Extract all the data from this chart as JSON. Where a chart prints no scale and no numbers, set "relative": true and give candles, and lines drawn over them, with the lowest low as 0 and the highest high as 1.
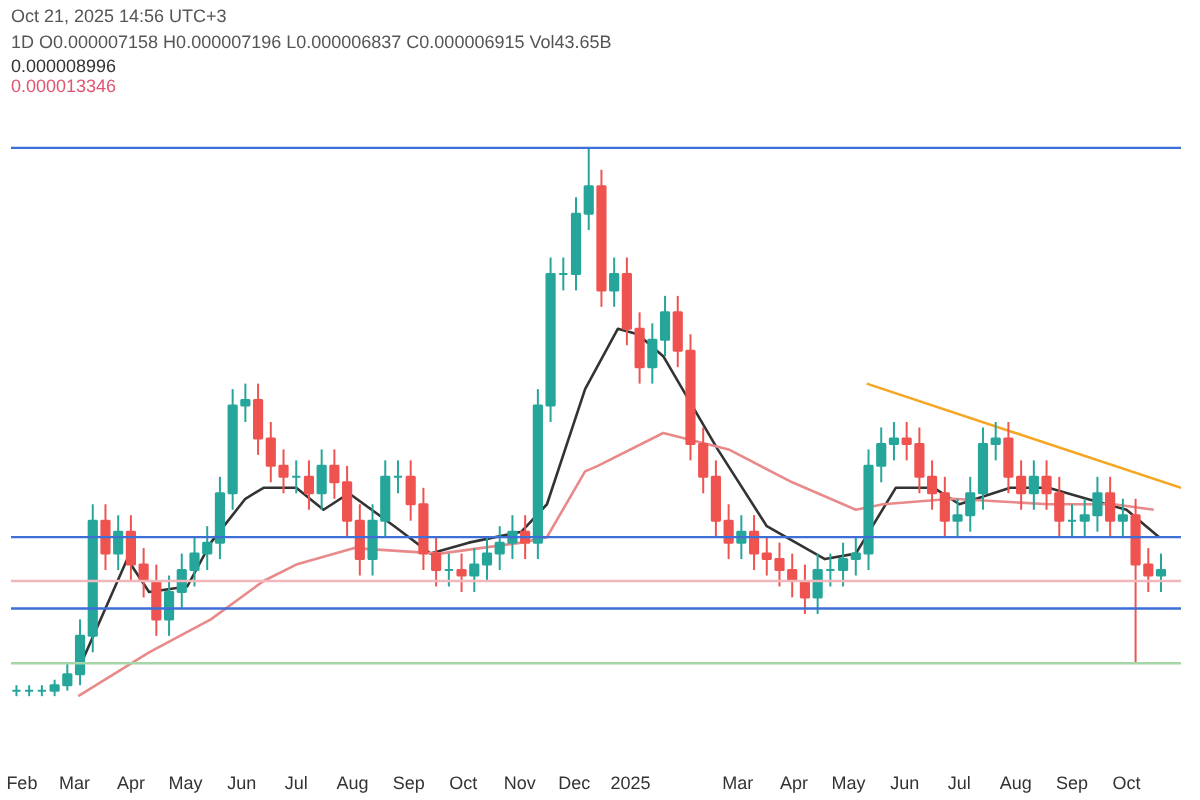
{
  "chart_data": {
    "type": "candlestick",
    "relative": true,
    "grid": false,
    "annotations": [
      "Oct 21, 2025 14:56 UTC+3",
      "1D O0.000007158 H0.000007196 L0.000006837 C0.000006915 Vol43.65B",
      "0.000008996",
      "0.000013346"
    ],
    "x": [
      "2024-01-29",
      "2024-02-05",
      "2024-02-12",
      "2024-02-19",
      "2024-02-26",
      "2024-03-04",
      "2024-03-11",
      "2024-03-18",
      "2024-03-25",
      "2024-04-01",
      "2024-04-08",
      "2024-04-15",
      "2024-04-22",
      "2024-04-29",
      "2024-05-06",
      "2024-05-13",
      "2024-05-20",
      "2024-05-27",
      "2024-06-03",
      "2024-06-10",
      "2024-06-17",
      "2024-06-24",
      "2024-07-01",
      "2024-07-08",
      "2024-07-15",
      "2024-07-22",
      "2024-07-29",
      "2024-08-05",
      "2024-08-12",
      "2024-08-19",
      "2024-08-26",
      "2024-09-02",
      "2024-09-09",
      "2024-09-16",
      "2024-09-23",
      "2024-09-30",
      "2024-10-07",
      "2024-10-14",
      "2024-10-21",
      "2024-10-28",
      "2024-11-04",
      "2024-11-11",
      "2024-11-18",
      "2024-11-25",
      "2024-12-02",
      "2024-12-09",
      "2024-12-16",
      "2024-12-23",
      "2024-12-30",
      "2025-01-06",
      "2025-01-13",
      "2025-01-20",
      "2025-01-27",
      "2025-02-03",
      "2025-02-10",
      "2025-02-17",
      "2025-02-24",
      "2025-03-03",
      "2025-03-10",
      "2025-03-17",
      "2025-03-24",
      "2025-03-31",
      "2025-04-07",
      "2025-04-14",
      "2025-04-21",
      "2025-04-28",
      "2025-05-05",
      "2025-05-12",
      "2025-05-19",
      "2025-05-26",
      "2025-06-02",
      "2025-06-09",
      "2025-06-16",
      "2025-06-23",
      "2025-06-30",
      "2025-07-07",
      "2025-07-14",
      "2025-07-21",
      "2025-07-28",
      "2025-08-04",
      "2025-08-11",
      "2025-08-18",
      "2025-08-25",
      "2025-09-01",
      "2025-09-08",
      "2025-09-15",
      "2025-09-22",
      "2025-09-29",
      "2025-10-06",
      "2025-10-13",
      "2025-10-20"
    ],
    "ohlc": [
      [
        0.01,
        0.02,
        0,
        0.01
      ],
      [
        0.01,
        0.02,
        0,
        0.01
      ],
      [
        0.01,
        0.02,
        0,
        0.01
      ],
      [
        0.01,
        0.03,
        0,
        0.02
      ],
      [
        0.02,
        0.06,
        0.01,
        0.04
      ],
      [
        0.04,
        0.14,
        0.02,
        0.11
      ],
      [
        0.11,
        0.35,
        0.08,
        0.32
      ],
      [
        0.32,
        0.35,
        0.23,
        0.26
      ],
      [
        0.26,
        0.33,
        0.23,
        0.3
      ],
      [
        0.3,
        0.33,
        0.21,
        0.24
      ],
      [
        0.24,
        0.27,
        0.18,
        0.21
      ],
      [
        0.21,
        0.24,
        0.11,
        0.14
      ],
      [
        0.14,
        0.22,
        0.11,
        0.19
      ],
      [
        0.19,
        0.26,
        0.16,
        0.23
      ],
      [
        0.23,
        0.29,
        0.2,
        0.26
      ],
      [
        0.26,
        0.31,
        0.23,
        0.28
      ],
      [
        0.28,
        0.4,
        0.25,
        0.37
      ],
      [
        0.37,
        0.56,
        0.34,
        0.53
      ],
      [
        0.53,
        0.57,
        0.5,
        0.54
      ],
      [
        0.54,
        0.57,
        0.44,
        0.47
      ],
      [
        0.47,
        0.5,
        0.39,
        0.42
      ],
      [
        0.42,
        0.45,
        0.37,
        0.4
      ],
      [
        0.4,
        0.43,
        0.37,
        0.4
      ],
      [
        0.4,
        0.43,
        0.34,
        0.37
      ],
      [
        0.37,
        0.45,
        0.34,
        0.42
      ],
      [
        0.42,
        0.45,
        0.36,
        0.39
      ],
      [
        0.39,
        0.42,
        0.29,
        0.32
      ],
      [
        0.32,
        0.35,
        0.22,
        0.25
      ],
      [
        0.25,
        0.35,
        0.22,
        0.32
      ],
      [
        0.32,
        0.43,
        0.29,
        0.4
      ],
      [
        0.4,
        0.43,
        0.37,
        0.4
      ],
      [
        0.4,
        0.43,
        0.32,
        0.35
      ],
      [
        0.35,
        0.38,
        0.23,
        0.26
      ],
      [
        0.26,
        0.29,
        0.2,
        0.23
      ],
      [
        0.23,
        0.26,
        0.2,
        0.23
      ],
      [
        0.23,
        0.26,
        0.19,
        0.22
      ],
      [
        0.22,
        0.27,
        0.19,
        0.24
      ],
      [
        0.24,
        0.29,
        0.21,
        0.26
      ],
      [
        0.26,
        0.31,
        0.23,
        0.28
      ],
      [
        0.28,
        0.33,
        0.25,
        0.3
      ],
      [
        0.3,
        0.33,
        0.25,
        0.28
      ],
      [
        0.28,
        0.56,
        0.25,
        0.53
      ],
      [
        0.53,
        0.8,
        0.5,
        0.77
      ],
      [
        0.77,
        0.8,
        0.74,
        0.77
      ],
      [
        0.77,
        0.91,
        0.74,
        0.88
      ],
      [
        0.88,
        1.0,
        0.85,
        0.93
      ],
      [
        0.93,
        0.96,
        0.71,
        0.74
      ],
      [
        0.74,
        0.8,
        0.71,
        0.77
      ],
      [
        0.77,
        0.8,
        0.64,
        0.67
      ],
      [
        0.67,
        0.7,
        0.57,
        0.6
      ],
      [
        0.6,
        0.68,
        0.57,
        0.65
      ],
      [
        0.65,
        0.73,
        0.62,
        0.7
      ],
      [
        0.7,
        0.73,
        0.6,
        0.63
      ],
      [
        0.63,
        0.66,
        0.43,
        0.46
      ],
      [
        0.46,
        0.49,
        0.37,
        0.4
      ],
      [
        0.4,
        0.43,
        0.29,
        0.32
      ],
      [
        0.32,
        0.35,
        0.25,
        0.28
      ],
      [
        0.28,
        0.33,
        0.25,
        0.3
      ],
      [
        0.3,
        0.33,
        0.23,
        0.26
      ],
      [
        0.26,
        0.29,
        0.22,
        0.25
      ],
      [
        0.25,
        0.28,
        0.2,
        0.23
      ],
      [
        0.23,
        0.26,
        0.18,
        0.21
      ],
      [
        0.21,
        0.24,
        0.15,
        0.18
      ],
      [
        0.18,
        0.26,
        0.15,
        0.23
      ],
      [
        0.23,
        0.26,
        0.2,
        0.23
      ],
      [
        0.23,
        0.28,
        0.2,
        0.25
      ],
      [
        0.25,
        0.29,
        0.22,
        0.26
      ],
      [
        0.26,
        0.45,
        0.23,
        0.42
      ],
      [
        0.42,
        0.49,
        0.39,
        0.46
      ],
      [
        0.46,
        0.5,
        0.43,
        0.47
      ],
      [
        0.47,
        0.5,
        0.43,
        0.46
      ],
      [
        0.46,
        0.49,
        0.37,
        0.4
      ],
      [
        0.4,
        0.43,
        0.34,
        0.37
      ],
      [
        0.37,
        0.4,
        0.29,
        0.32
      ],
      [
        0.32,
        0.36,
        0.29,
        0.33
      ],
      [
        0.33,
        0.4,
        0.3,
        0.37
      ],
      [
        0.37,
        0.49,
        0.34,
        0.46
      ],
      [
        0.46,
        0.5,
        0.43,
        0.47
      ],
      [
        0.47,
        0.5,
        0.37,
        0.4
      ],
      [
        0.4,
        0.43,
        0.34,
        0.37
      ],
      [
        0.37,
        0.43,
        0.34,
        0.4
      ],
      [
        0.4,
        0.43,
        0.34,
        0.37
      ],
      [
        0.37,
        0.4,
        0.29,
        0.32
      ],
      [
        0.32,
        0.35,
        0.29,
        0.32
      ],
      [
        0.32,
        0.36,
        0.29,
        0.33
      ],
      [
        0.33,
        0.4,
        0.3,
        0.37
      ],
      [
        0.37,
        0.4,
        0.29,
        0.32
      ],
      [
        0.32,
        0.36,
        0.29,
        0.33
      ],
      [
        0.33,
        0.36,
        0.06,
        0.24
      ],
      [
        0.24,
        0.27,
        0.19,
        0.22
      ],
      [
        0.22,
        0.26,
        0.19,
        0.23
      ]
    ],
    "series": [
      {
        "type": "line",
        "color": "#333333",
        "x": [
          "2024-03-06",
          "2024-03-30",
          "2024-04-11",
          "2024-05-02",
          "2024-05-15",
          "2024-06-03",
          "2024-06-13",
          "2024-07-01",
          "2024-07-16",
          "2024-07-30",
          "2024-08-24",
          "2024-09-13",
          "2024-10-04",
          "2024-11-02",
          "2024-11-16",
          "2024-12-07",
          "2024-12-25",
          "2025-01-05",
          "2025-01-19",
          "2025-02-18",
          "2025-03-17",
          "2025-04-18",
          "2025-05-05",
          "2025-05-27",
          "2025-06-17",
          "2025-07-01",
          "2025-07-29",
          "2025-08-19",
          "2025-09-09",
          "2025-10-01",
          "2025-10-19"
        ],
        "values": [
          0.07,
          0.25,
          0.19,
          0.2,
          0.28,
          0.36,
          0.38,
          0.38,
          0.34,
          0.37,
          0.31,
          0.26,
          0.28,
          0.3,
          0.35,
          0.56,
          0.67,
          0.66,
          0.62,
          0.45,
          0.31,
          0.25,
          0.26,
          0.38,
          0.38,
          0.35,
          0.38,
          0.38,
          0.36,
          0.34,
          0.29
        ]
      },
      {
        "type": "line",
        "color": "#e88a8a",
        "x": [
          "2024-03-03",
          "2024-04-11",
          "2024-05-15",
          "2024-06-13",
          "2024-07-01",
          "2024-08-02",
          "2024-09-18",
          "2024-11-02",
          "2024-11-16",
          "2024-12-07",
          "2024-12-14",
          "2025-01-19",
          "2025-02-24",
          "2025-03-31",
          "2025-05-05",
          "2025-05-20",
          "2025-06-27",
          "2025-08-19",
          "2025-09-24",
          "2025-10-16"
        ],
        "values": [
          0.0,
          0.08,
          0.14,
          0.21,
          0.24,
          0.27,
          0.26,
          0.28,
          0.29,
          0.41,
          0.42,
          0.48,
          0.45,
          0.39,
          0.34,
          0.35,
          0.36,
          0.35,
          0.35,
          0.34
        ]
      },
      {
        "type": "line",
        "color": "#f5a623",
        "x": [
          "2025-05-11",
          "2025-10-31"
        ],
        "values": [
          0.57,
          0.38
        ]
      }
    ],
    "ref_lines": [
      {
        "axis": "y",
        "value": 1.0,
        "color": "#3d6fd6"
      },
      {
        "axis": "y",
        "value": 0.29,
        "color": "#3d6fd6"
      },
      {
        "axis": "y",
        "value": 0.16,
        "color": "#3d6fd6"
      },
      {
        "axis": "y",
        "value": 0.21,
        "color": "#f3b6bd"
      },
      {
        "axis": "y",
        "value": 0.06,
        "color": "#a5d6a7"
      }
    ],
    "xlim": [
      "2024-01-26",
      "2025-10-31"
    ],
    "xticks": [
      {
        "value": "2024-02-01",
        "label": "Feb"
      },
      {
        "value": "2024-03-01",
        "label": "Mar"
      },
      {
        "value": "2024-04-01",
        "label": "Apr"
      },
      {
        "value": "2024-05-01",
        "label": "May"
      },
      {
        "value": "2024-06-01",
        "label": "Jun"
      },
      {
        "value": "2024-07-01",
        "label": "Jul"
      },
      {
        "value": "2024-08-01",
        "label": "Aug"
      },
      {
        "value": "2024-09-01",
        "label": "Sep"
      },
      {
        "value": "2024-10-01",
        "label": "Oct"
      },
      {
        "value": "2024-11-01",
        "label": "Nov"
      },
      {
        "value": "2024-12-01",
        "label": "Dec"
      },
      {
        "value": "2025-01-01",
        "label": "2025"
      },
      {
        "value": "2025-03-01",
        "label": "Mar"
      },
      {
        "value": "2025-04-01",
        "label": "Apr"
      },
      {
        "value": "2025-05-01",
        "label": "May"
      },
      {
        "value": "2025-06-01",
        "label": "Jun"
      },
      {
        "value": "2025-07-01",
        "label": "Jul"
      },
      {
        "value": "2025-08-01",
        "label": "Aug"
      },
      {
        "value": "2025-09-01",
        "label": "Sep"
      },
      {
        "value": "2025-10-01",
        "label": "Oct"
      }
    ]
  }
}
